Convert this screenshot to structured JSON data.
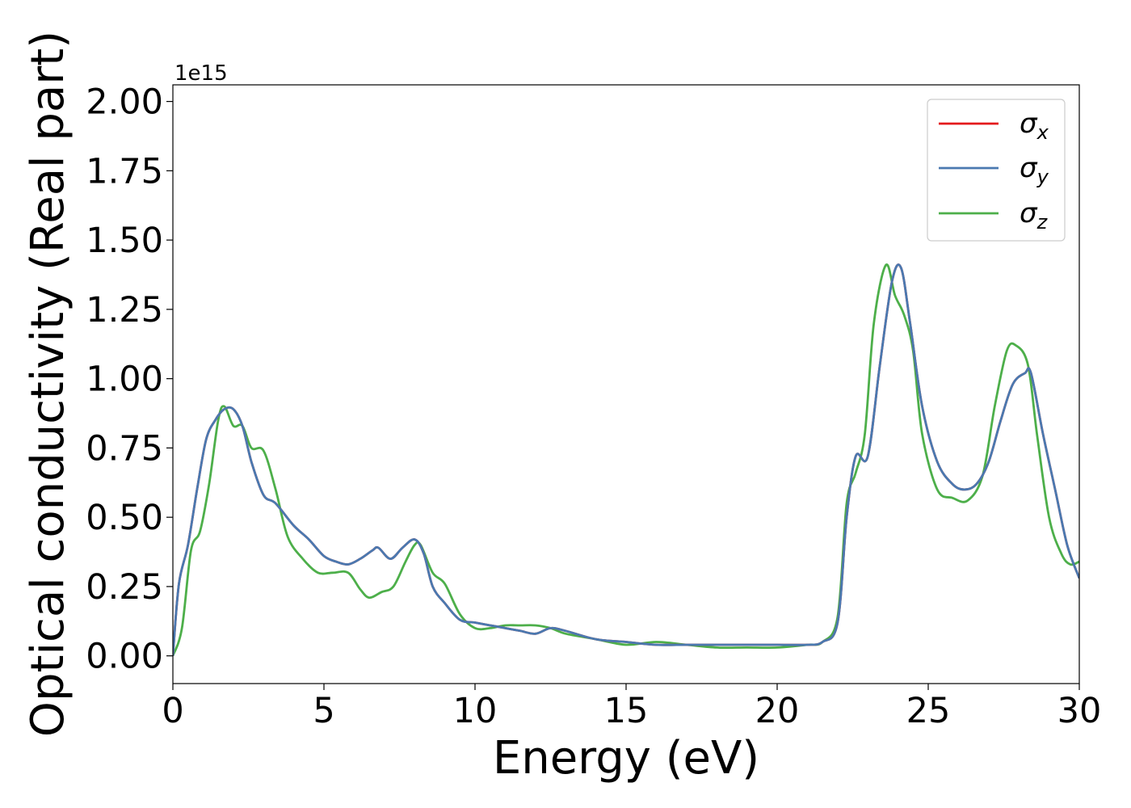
{
  "chart_data": {
    "type": "line",
    "xlabel": "Energy (eV)",
    "ylabel": "Optical conductivity (Real part)",
    "y_offset_text": "1e15",
    "xlim": [
      0,
      30
    ],
    "ylim": [
      -0.1,
      2.06
    ],
    "x_ticks": [
      0,
      5,
      10,
      15,
      20,
      25,
      30
    ],
    "x_tick_labels": [
      "0",
      "5",
      "10",
      "15",
      "20",
      "25",
      "30"
    ],
    "y_ticks": [
      0,
      0.25,
      0.5,
      0.75,
      1.0,
      1.25,
      1.5,
      1.75,
      2.0
    ],
    "y_tick_labels": [
      "0.00",
      "0.25",
      "0.50",
      "0.75",
      "1.00",
      "1.25",
      "1.50",
      "1.75",
      "2.00"
    ],
    "grid": false,
    "legend_position": "top-right",
    "series": [
      {
        "name": "σx",
        "symbol": "σ",
        "subscript": "x",
        "color": "#e41a1c",
        "x": [
          0,
          0.2,
          0.5,
          0.8,
          1.1,
          1.4,
          1.7,
          2.0,
          2.3,
          2.6,
          3.0,
          3.4,
          4.0,
          4.5,
          5.0,
          5.4,
          5.8,
          6.2,
          6.6,
          6.8,
          7.2,
          7.6,
          8.0,
          8.3,
          8.6,
          9.0,
          9.5,
          10.0,
          10.5,
          11.0,
          11.5,
          12.0,
          12.5,
          13.0,
          14.0,
          15.0,
          16.0,
          17.0,
          18.0,
          19.0,
          20.0,
          21.0,
          21.5,
          22.0,
          22.3,
          22.6,
          23.0,
          23.4,
          23.8,
          24.1,
          24.4,
          24.8,
          25.3,
          25.8,
          26.2,
          26.6,
          27.0,
          27.4,
          27.8,
          28.2,
          28.4,
          28.8,
          29.2,
          29.6,
          30.0
        ],
        "values": [
          0.0,
          0.26,
          0.4,
          0.6,
          0.78,
          0.85,
          0.89,
          0.89,
          0.83,
          0.7,
          0.58,
          0.55,
          0.47,
          0.42,
          0.36,
          0.34,
          0.33,
          0.35,
          0.38,
          0.39,
          0.35,
          0.39,
          0.42,
          0.37,
          0.25,
          0.19,
          0.13,
          0.12,
          0.11,
          0.1,
          0.09,
          0.08,
          0.1,
          0.09,
          0.06,
          0.05,
          0.04,
          0.04,
          0.04,
          0.04,
          0.04,
          0.04,
          0.05,
          0.12,
          0.5,
          0.72,
          0.72,
          1.05,
          1.35,
          1.4,
          1.2,
          0.9,
          0.7,
          0.62,
          0.6,
          0.62,
          0.7,
          0.85,
          0.98,
          1.02,
          1.02,
          0.8,
          0.6,
          0.4,
          0.28
        ]
      },
      {
        "name": "σy",
        "symbol": "σ",
        "subscript": "y",
        "color": "#4a79b0",
        "x": [
          0,
          0.2,
          0.5,
          0.8,
          1.1,
          1.4,
          1.7,
          2.0,
          2.3,
          2.6,
          3.0,
          3.4,
          4.0,
          4.5,
          5.0,
          5.4,
          5.8,
          6.2,
          6.6,
          6.8,
          7.2,
          7.6,
          8.0,
          8.3,
          8.6,
          9.0,
          9.5,
          10.0,
          10.5,
          11.0,
          11.5,
          12.0,
          12.5,
          13.0,
          14.0,
          15.0,
          16.0,
          17.0,
          18.0,
          19.0,
          20.0,
          21.0,
          21.5,
          22.0,
          22.3,
          22.6,
          23.0,
          23.4,
          23.8,
          24.1,
          24.4,
          24.8,
          25.3,
          25.8,
          26.2,
          26.6,
          27.0,
          27.4,
          27.8,
          28.2,
          28.4,
          28.8,
          29.2,
          29.6,
          30.0
        ],
        "values": [
          0.0,
          0.26,
          0.4,
          0.6,
          0.78,
          0.85,
          0.89,
          0.89,
          0.83,
          0.7,
          0.58,
          0.55,
          0.47,
          0.42,
          0.36,
          0.34,
          0.33,
          0.35,
          0.38,
          0.39,
          0.35,
          0.39,
          0.42,
          0.37,
          0.25,
          0.19,
          0.13,
          0.12,
          0.11,
          0.1,
          0.09,
          0.08,
          0.1,
          0.09,
          0.06,
          0.05,
          0.04,
          0.04,
          0.04,
          0.04,
          0.04,
          0.04,
          0.05,
          0.12,
          0.5,
          0.72,
          0.72,
          1.05,
          1.35,
          1.4,
          1.2,
          0.9,
          0.7,
          0.62,
          0.6,
          0.62,
          0.7,
          0.85,
          0.98,
          1.02,
          1.02,
          0.8,
          0.6,
          0.4,
          0.28
        ]
      },
      {
        "name": "σz",
        "symbol": "σ",
        "subscript": "z",
        "color": "#4daf4a",
        "x": [
          0,
          0.3,
          0.6,
          0.9,
          1.2,
          1.5,
          1.7,
          2.0,
          2.3,
          2.6,
          3.0,
          3.4,
          3.8,
          4.3,
          4.8,
          5.3,
          5.8,
          6.2,
          6.5,
          6.9,
          7.3,
          7.7,
          8.0,
          8.2,
          8.6,
          9.0,
          9.5,
          10.0,
          10.5,
          11.0,
          11.5,
          12.0,
          12.5,
          13.0,
          14.0,
          15.0,
          16.0,
          17.0,
          18.0,
          19.0,
          20.0,
          21.0,
          21.5,
          22.0,
          22.3,
          22.6,
          22.9,
          23.2,
          23.6,
          23.9,
          24.2,
          24.5,
          24.8,
          25.3,
          25.8,
          26.3,
          26.8,
          27.2,
          27.6,
          27.9,
          28.3,
          28.6,
          29.0,
          29.4,
          29.7,
          30.0
        ],
        "values": [
          0.0,
          0.1,
          0.38,
          0.45,
          0.62,
          0.85,
          0.9,
          0.83,
          0.83,
          0.75,
          0.74,
          0.6,
          0.43,
          0.35,
          0.3,
          0.3,
          0.3,
          0.24,
          0.21,
          0.23,
          0.25,
          0.34,
          0.4,
          0.4,
          0.3,
          0.26,
          0.15,
          0.1,
          0.1,
          0.11,
          0.11,
          0.11,
          0.1,
          0.08,
          0.06,
          0.04,
          0.05,
          0.04,
          0.03,
          0.03,
          0.03,
          0.04,
          0.05,
          0.14,
          0.55,
          0.66,
          0.8,
          1.2,
          1.41,
          1.3,
          1.23,
          1.1,
          0.8,
          0.6,
          0.57,
          0.56,
          0.65,
          0.9,
          1.1,
          1.12,
          1.05,
          0.8,
          0.5,
          0.37,
          0.33,
          0.34
        ]
      }
    ]
  }
}
